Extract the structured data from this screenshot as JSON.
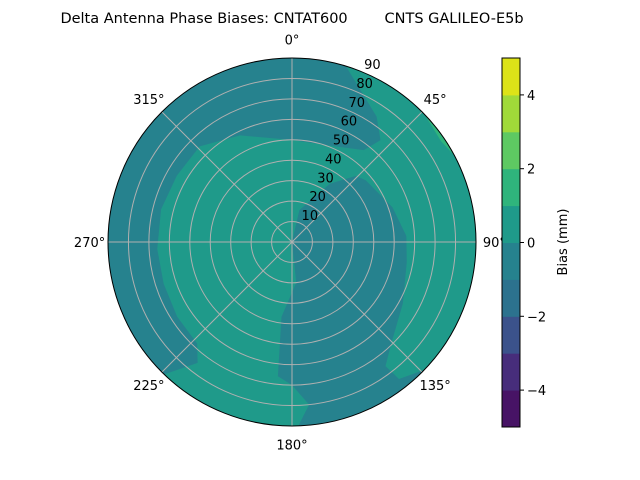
{
  "chart_data": {
    "type": "polar-contour",
    "title": "Delta Antenna Phase Biases: CNTAT600        CNTS GALILEO-E5b",
    "angular_ticks": [
      "0°",
      "45°",
      "90°",
      "135°",
      "180°",
      "225°",
      "270°",
      "315°"
    ],
    "angular_tick_values": [
      0,
      45,
      90,
      135,
      180,
      225,
      270,
      315
    ],
    "radial_ticks": [
      "10",
      "20",
      "30",
      "40",
      "50",
      "60",
      "70",
      "80",
      "90"
    ],
    "radial_tick_values": [
      10,
      20,
      30,
      40,
      50,
      60,
      70,
      80,
      90
    ],
    "radial_range": [
      0,
      90
    ],
    "angular_direction": "clockwise",
    "zero_location": "north",
    "grid": true,
    "colorbar": {
      "label": "Bias (mm)",
      "range": [
        -5,
        5
      ],
      "levels": [
        -5,
        -4,
        -3,
        -2,
        -1,
        0,
        1,
        2,
        3,
        4,
        5
      ],
      "colors": [
        "#471365",
        "#472d7b",
        "#3b528b",
        "#2c728e",
        "#26828e",
        "#1f9a8a",
        "#2fb47c",
        "#5ec962",
        "#a0da39",
        "#dde318"
      ],
      "ticks": [
        "−4",
        "−2",
        "0",
        "2",
        "4"
      ],
      "tick_values": [
        -4,
        -2,
        0,
        2,
        4
      ]
    },
    "background_level": [
      -1,
      0
    ],
    "regions": [
      {
        "level": [
          0,
          1
        ],
        "boundary_az_zen": [
          [
            17,
            90
          ],
          [
            134,
            90
          ],
          [
            142,
            85
          ],
          [
            143,
            76
          ],
          [
            135,
            69
          ],
          [
            119,
            62
          ],
          [
            100,
            57
          ],
          [
            87,
            56
          ],
          [
            71,
            52
          ],
          [
            50,
            47
          ],
          [
            44,
            45
          ],
          [
            33,
            34
          ],
          [
            13,
            16
          ],
          [
            0,
            0
          ],
          [
            174,
            20
          ],
          [
            188,
            37
          ],
          [
            186,
            66
          ],
          [
            180,
            70
          ],
          [
            174,
            80
          ],
          [
            178,
            90
          ],
          [
            224,
            90
          ],
          [
            218,
            75
          ],
          [
            223,
            68
          ],
          [
            237,
            67
          ],
          [
            252,
            66
          ],
          [
            267,
            66
          ],
          [
            284,
            66
          ],
          [
            300,
            65
          ],
          [
            316,
            65
          ],
          [
            334,
            58
          ],
          [
            359,
            50
          ],
          [
            23,
            51
          ],
          [
            38,
            57
          ],
          [
            41,
            66
          ],
          [
            34,
            74
          ]
        ]
      },
      {
        "level": [
          1,
          2
        ],
        "boundary_az_zen": [
          [
            46,
            90
          ],
          [
            62,
            90
          ],
          [
            56,
            88
          ]
        ]
      }
    ]
  }
}
